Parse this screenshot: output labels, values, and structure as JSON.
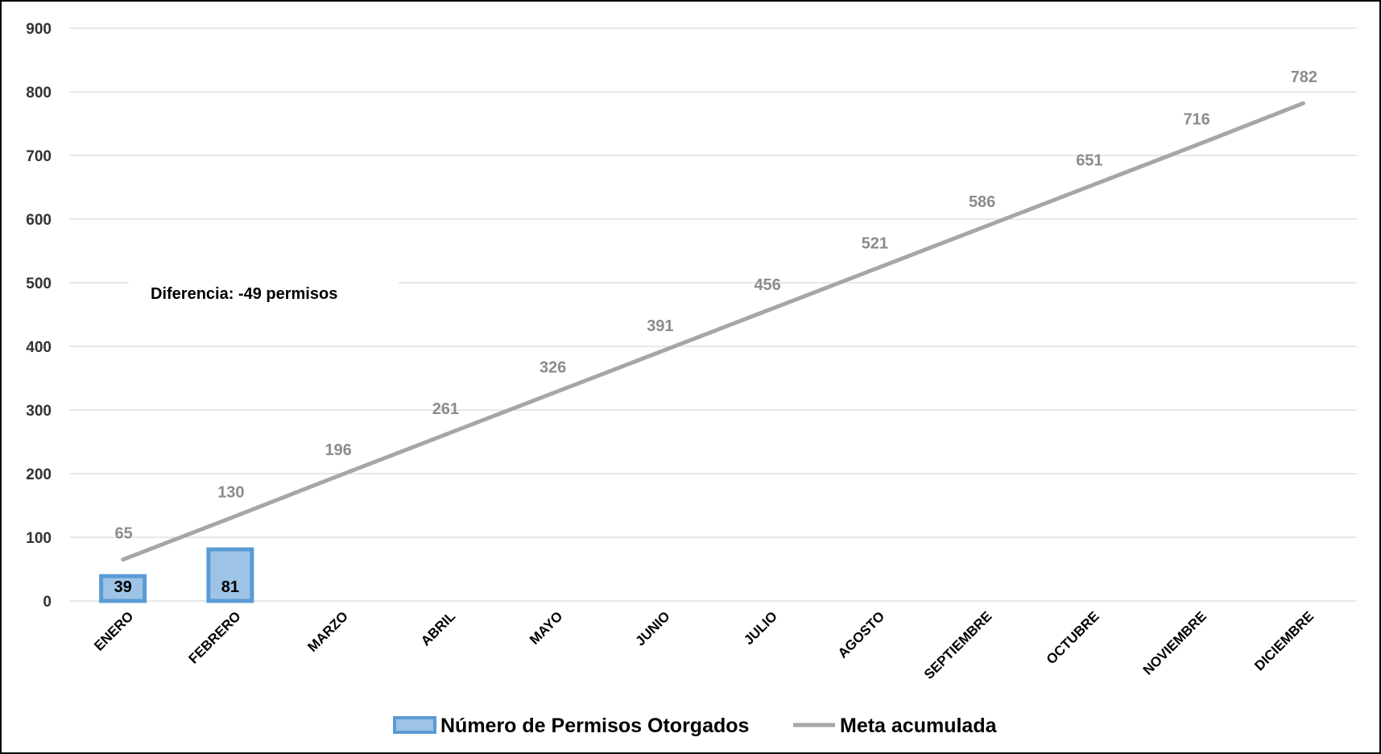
{
  "chart_data": {
    "type": "bar",
    "title": "",
    "xlabel": "",
    "ylabel": "",
    "categories": [
      "ENERO",
      "FEBRERO",
      "MARZO",
      "ABRIL",
      "MAYO",
      "JUNIO",
      "JULIO",
      "AGOSTO",
      "SEPTIEMBRE",
      "OCTUBRE",
      "NOVIEMBRE",
      "DICIEMBRE"
    ],
    "series": [
      {
        "name": "Número de Permisos Otorgados",
        "type": "bar",
        "values": [
          39,
          81,
          null,
          null,
          null,
          null,
          null,
          null,
          null,
          null,
          null,
          null
        ],
        "labels": [
          "39",
          "81"
        ],
        "color": "#9dc3e6",
        "border_color": "#5b9bd5"
      },
      {
        "name": "Meta acumulada",
        "type": "line",
        "values": [
          65,
          130,
          196,
          261,
          326,
          391,
          456,
          521,
          586,
          651,
          716,
          782
        ],
        "labels": [
          "65",
          "130",
          "196",
          "261",
          "326",
          "391",
          "456",
          "521",
          "586",
          "651",
          "716",
          "782"
        ],
        "color": "#a6a6a6"
      }
    ],
    "ylim": [
      0,
      900
    ],
    "yticks": [
      "0",
      "100",
      "200",
      "300",
      "400",
      "500",
      "600",
      "700",
      "800",
      "900"
    ],
    "grid": true,
    "legend_position": "bottom",
    "annotation": "Diferencia: -49 permisos",
    "colors": {
      "grid": "#d9d9d9",
      "line_label": "#8c8c8c"
    }
  }
}
